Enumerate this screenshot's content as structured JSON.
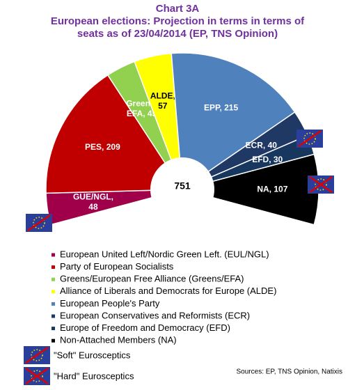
{
  "chart_data": {
    "type": "pie",
    "title": "Chart 3A",
    "subtitle": [
      "European elections: Projection in terms in terms of",
      "seats as of 23/04/2014 (EP, TNS Opinion)"
    ],
    "total": 751,
    "categories": [
      "European United Left/Nordic Green Left. (EUL/NGL)",
      "Party of European Socialists",
      "Greens/European Free Alliance (Greens/EFA)",
      "Alliance of Liberals and Democrats for Europe (ALDE)",
      "European People's Party",
      "European Conservatives and Reformists (ECR)",
      "Europe of Freedom and Democracy (EFD)",
      "Non-Attached Members (NA)"
    ],
    "values": [
      48,
      209,
      45,
      57,
      215,
      40,
      30,
      107
    ],
    "value_labels": [
      "GUE/NGL,\n48",
      "PES, 209",
      "Greens/\nEFA, 45",
      "ALDE,\n57",
      "EPP, 215",
      "ECR, 40",
      "EFD, 30",
      "NA, 107"
    ],
    "colors": [
      "#a0004a",
      "#c00000",
      "#92d050",
      "#ffff00",
      "#4f81bd",
      "#1f3864",
      "#17375e",
      "#000000"
    ],
    "markers": [
      "\"Soft\" Eurosceptics",
      "\"Hard\" Eurosceptics"
    ],
    "source": "Sources: EP, TNS Opinion, Natixis"
  }
}
